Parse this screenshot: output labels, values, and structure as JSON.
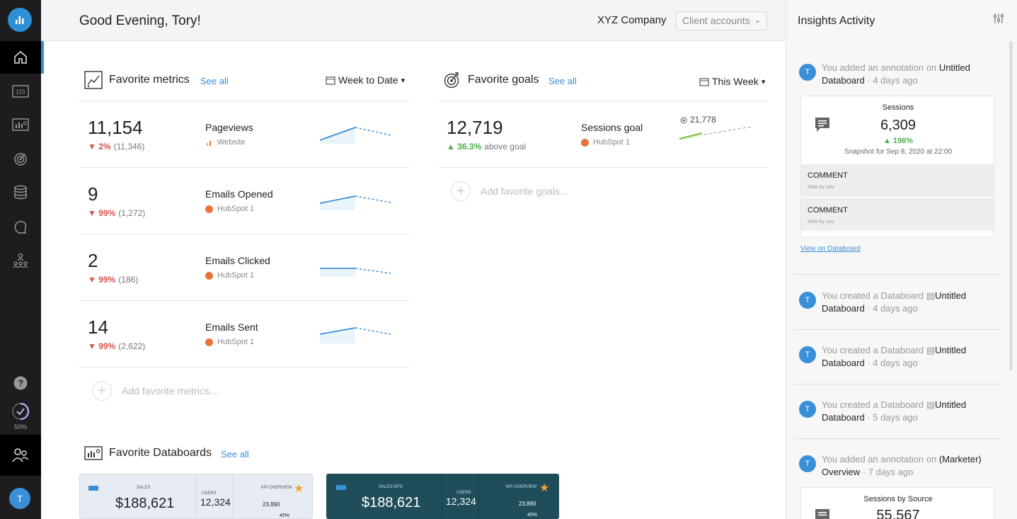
{
  "header": {
    "greeting": "Good Evening, Tory!",
    "company": "XYZ Company",
    "client_select": "Client accounts"
  },
  "nav": {
    "progress_label": "50%",
    "avatar_initial": "T"
  },
  "favorite_metrics": {
    "title": "Favorite metrics",
    "see_all": "See all",
    "period": "Week to Date",
    "items": [
      {
        "value": "11,154",
        "change": "2%",
        "previous": "(11,346)",
        "name": "Pageviews",
        "source": "Website",
        "source_icon": "google-analytics-icon"
      },
      {
        "value": "9",
        "change": "99%",
        "previous": "(1,272)",
        "name": "Emails Opened",
        "source": "HubSpot 1",
        "source_icon": "hubspot-icon"
      },
      {
        "value": "2",
        "change": "99%",
        "previous": "(186)",
        "name": "Emails Clicked",
        "source": "HubSpot 1",
        "source_icon": "hubspot-icon"
      },
      {
        "value": "14",
        "change": "99%",
        "previous": "(2,622)",
        "name": "Emails Sent",
        "source": "HubSpot 1",
        "source_icon": "hubspot-icon"
      }
    ],
    "add_label": "Add favorite metrics..."
  },
  "favorite_goals": {
    "title": "Favorite goals",
    "see_all": "See all",
    "period": "This Week",
    "goal": {
      "value": "12,719",
      "change": "36.3%",
      "change_desc": "above goal",
      "name": "Sessions goal",
      "source": "HubSpot 1",
      "target": "21,778"
    },
    "add_label": "Add favorite goals..."
  },
  "favorite_databoards": {
    "title": "Favorite Databoards",
    "see_all": "See all",
    "boards": [
      {
        "header": "SALES",
        "value": "188,621",
        "side_label": "USERS",
        "side_value": "12,324",
        "kpi_header": "KPI OVERVIEW",
        "kpi_value": "23,890",
        "kpi_pct": "45%"
      },
      {
        "header": "SALES MTD",
        "value": "188,621",
        "side_label": "USERS",
        "side_value": "12,324",
        "kpi_header": "KPI OVERVIEW",
        "kpi_value": "23,890",
        "kpi_pct": "45%"
      }
    ]
  },
  "insights": {
    "title": "Insights Activity",
    "activities": [
      {
        "avatar": "T",
        "prefix": "You added an annotation on",
        "target": "Untitled Databoard",
        "time": "4 days ago"
      },
      {
        "avatar": "T",
        "prefix": "You created a Databoard",
        "target": "Untitled Databoard",
        "time": "4 days ago"
      },
      {
        "avatar": "T",
        "prefix": "You created a Databoard",
        "target": "Untitled Databoard",
        "time": "4 days ago"
      },
      {
        "avatar": "T",
        "prefix": "You created a Databoard",
        "target": "Untitled Databoard",
        "time": "5 days ago"
      },
      {
        "avatar": "T",
        "prefix": "You added an annotation on",
        "target": "(Marketer) Overview",
        "time": "7 days ago"
      }
    ],
    "card1": {
      "title": "Sessions",
      "value": "6,309",
      "change": "196%",
      "snapshot": "Snapshot for Sep 8, 2020 at 22:00",
      "comments": [
        {
          "label": "COMMENT",
          "note": "Note by you"
        },
        {
          "label": "COMMENT",
          "note": "Note by you"
        }
      ],
      "view_link": "View on Databoard"
    },
    "card2": {
      "title": "Sessions by Source",
      "value": "55,567"
    }
  }
}
